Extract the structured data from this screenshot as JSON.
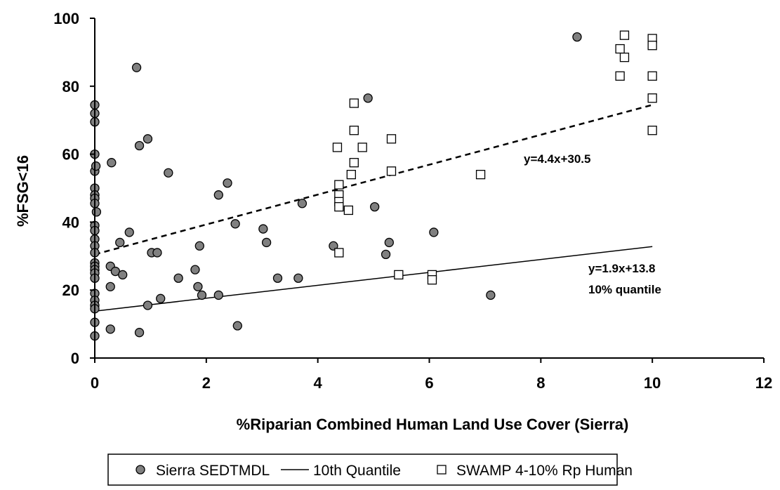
{
  "chart_data": {
    "type": "scatter",
    "xlabel": "%Riparian Combined Human Land Use Cover (Sierra)",
    "ylabel": "%FSG<16",
    "xlim": [
      0,
      12
    ],
    "ylim": [
      0,
      100
    ],
    "x_ticks": [
      "0",
      "2",
      "4",
      "6",
      "8",
      "10",
      "12"
    ],
    "y_ticks": [
      "0",
      "20",
      "40",
      "60",
      "80",
      "100"
    ],
    "legend_position": "bottom",
    "series": [
      {
        "name": "Sierra SEDTMDL",
        "marker": "circle",
        "color": "#808080",
        "points": [
          [
            0,
            74.5
          ],
          [
            0,
            72
          ],
          [
            0,
            69.5
          ],
          [
            0,
            60
          ],
          [
            0,
            55
          ],
          [
            0.02,
            56.5
          ],
          [
            0,
            50
          ],
          [
            0,
            48
          ],
          [
            0,
            47
          ],
          [
            0,
            45.5
          ],
          [
            0.03,
            43
          ],
          [
            0,
            39
          ],
          [
            0,
            37.5
          ],
          [
            0,
            35
          ],
          [
            0,
            33
          ],
          [
            0,
            31
          ],
          [
            0,
            28
          ],
          [
            0,
            27
          ],
          [
            0,
            26
          ],
          [
            0,
            25
          ],
          [
            0,
            23.5
          ],
          [
            0,
            19
          ],
          [
            0,
            17
          ],
          [
            0,
            15.5
          ],
          [
            0,
            14.5
          ],
          [
            0,
            10.5
          ],
          [
            0,
            6.5
          ],
          [
            0.28,
            27
          ],
          [
            0.28,
            21
          ],
          [
            0.3,
            57.5
          ],
          [
            0.28,
            8.5
          ],
          [
            0.37,
            25.5
          ],
          [
            0.45,
            34
          ],
          [
            0.5,
            24.5
          ],
          [
            0.62,
            37
          ],
          [
            0.75,
            85.5
          ],
          [
            0.8,
            62.5
          ],
          [
            0.8,
            7.5
          ],
          [
            0.95,
            64.5
          ],
          [
            0.95,
            15.5
          ],
          [
            1.02,
            31
          ],
          [
            1.12,
            31
          ],
          [
            1.18,
            17.5
          ],
          [
            1.32,
            54.5
          ],
          [
            1.5,
            23.5
          ],
          [
            1.8,
            26
          ],
          [
            1.85,
            21
          ],
          [
            1.88,
            33
          ],
          [
            1.92,
            18.5
          ],
          [
            2.22,
            48
          ],
          [
            2.22,
            18.5
          ],
          [
            2.38,
            51.5
          ],
          [
            2.52,
            39.5
          ],
          [
            2.56,
            9.5
          ],
          [
            3.02,
            38
          ],
          [
            3.08,
            34
          ],
          [
            3.28,
            23.5
          ],
          [
            3.65,
            23.5
          ],
          [
            3.72,
            45.5
          ],
          [
            4.28,
            33
          ],
          [
            4.9,
            76.5
          ],
          [
            5.02,
            44.5
          ],
          [
            5.22,
            30.5
          ],
          [
            5.28,
            34
          ],
          [
            6.08,
            37
          ],
          [
            7.1,
            18.5
          ],
          [
            8.65,
            94.5
          ]
        ]
      },
      {
        "name": "SWAMP 4-10% Rp Human",
        "marker": "square",
        "color": "#ffffff",
        "points": [
          [
            4.35,
            62
          ],
          [
            4.38,
            51
          ],
          [
            4.38,
            48
          ],
          [
            4.38,
            46
          ],
          [
            4.38,
            44.5
          ],
          [
            4.38,
            31
          ],
          [
            4.55,
            43.5
          ],
          [
            4.6,
            54
          ],
          [
            4.65,
            57.5
          ],
          [
            4.65,
            67
          ],
          [
            4.65,
            75
          ],
          [
            4.8,
            62
          ],
          [
            5.32,
            64.5
          ],
          [
            5.32,
            55
          ],
          [
            5.45,
            24.5
          ],
          [
            6.05,
            24.5
          ],
          [
            6.05,
            23
          ],
          [
            6.92,
            54
          ],
          [
            9.42,
            83
          ],
          [
            9.42,
            91
          ],
          [
            9.5,
            95
          ],
          [
            9.5,
            88.5
          ],
          [
            10,
            94
          ],
          [
            10,
            92
          ],
          [
            10,
            83
          ],
          [
            10,
            76.5
          ],
          [
            10,
            67
          ]
        ]
      }
    ],
    "lines": [
      {
        "name": "10th Quantile",
        "style": "solid",
        "x": [
          0,
          10
        ],
        "y": [
          13.8,
          32.8
        ]
      },
      {
        "style": "dashed",
        "x": [
          0,
          10
        ],
        "y": [
          30.5,
          74.5
        ]
      }
    ],
    "annotations": [
      {
        "id": "upper-eq",
        "text": "y=4.4x+30.5"
      },
      {
        "id": "lower-eq",
        "text": "y=1.9x+13.8"
      },
      {
        "id": "lower-label",
        "text": "10% quantile"
      }
    ],
    "legend": [
      {
        "label": "Sierra SEDTMDL",
        "marker": "circle"
      },
      {
        "label": "10th Quantile",
        "marker": "line"
      },
      {
        "label": "SWAMP 4-10% Rp Human",
        "marker": "square"
      }
    ]
  }
}
